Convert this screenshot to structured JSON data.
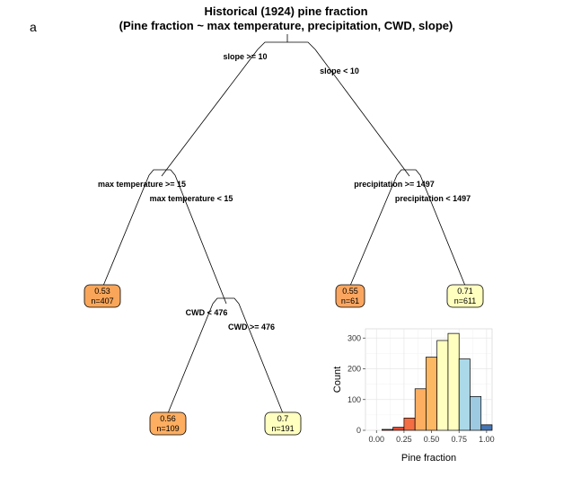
{
  "panel_label": "a",
  "title_line1": "Historical (1924) pine fraction",
  "title_line2": "(Pine fraction ~ max temperature, precipitation, CWD, slope)",
  "tree": {
    "splits": {
      "root_left": "slope >= 10",
      "root_right": "slope < 10",
      "n1_left": "max temperature >= 15",
      "n1_right": "max temperature < 15",
      "n2_left": "precipitation >= 1497",
      "n2_right": "precipitation < 1497",
      "n3_left": "CWD < 476",
      "n3_right": "CWD >= 476"
    },
    "leaves": [
      {
        "id": "leaf1",
        "value": "0.53",
        "n": "n=407",
        "color": "#f9a65a"
      },
      {
        "id": "leaf2",
        "value": "0.56",
        "n": "n=109",
        "color": "#fdae61"
      },
      {
        "id": "leaf3",
        "value": "0.7",
        "n": "n=191",
        "color": "#ffffbf"
      },
      {
        "id": "leaf4",
        "value": "0.55",
        "n": "n=61",
        "color": "#fba660"
      },
      {
        "id": "leaf5",
        "value": "0.71",
        "n": "n=611",
        "color": "#ffffbf"
      }
    ]
  },
  "chart_data": {
    "type": "bar",
    "xlabel": "Pine fraction",
    "ylabel": "Count",
    "xlim": [
      -0.1,
      1.05
    ],
    "ylim": [
      0,
      330
    ],
    "xticks": [
      "0.00",
      "0.25",
      "0.50",
      "0.75",
      "1.00"
    ],
    "xtick_values": [
      0,
      0.25,
      0.5,
      0.75,
      1.0
    ],
    "yticks": [
      "0",
      "100",
      "200",
      "300"
    ],
    "ytick_values": [
      0,
      100,
      200,
      300
    ],
    "grid": true,
    "bin_width": 0.1,
    "bins": [
      {
        "x": 0.1,
        "count": 3,
        "color": "#d73027"
      },
      {
        "x": 0.2,
        "count": 10,
        "color": "#e34a33"
      },
      {
        "x": 0.3,
        "count": 40,
        "color": "#f46d43"
      },
      {
        "x": 0.4,
        "count": 135,
        "color": "#fdae61"
      },
      {
        "x": 0.5,
        "count": 238,
        "color": "#fdb863"
      },
      {
        "x": 0.6,
        "count": 292,
        "color": "#ffffbf"
      },
      {
        "x": 0.7,
        "count": 315,
        "color": "#ffffbf"
      },
      {
        "x": 0.8,
        "count": 232,
        "color": "#abd9e9"
      },
      {
        "x": 0.9,
        "count": 110,
        "color": "#9ecae1"
      },
      {
        "x": 1.0,
        "count": 18,
        "color": "#4575b4"
      }
    ]
  }
}
